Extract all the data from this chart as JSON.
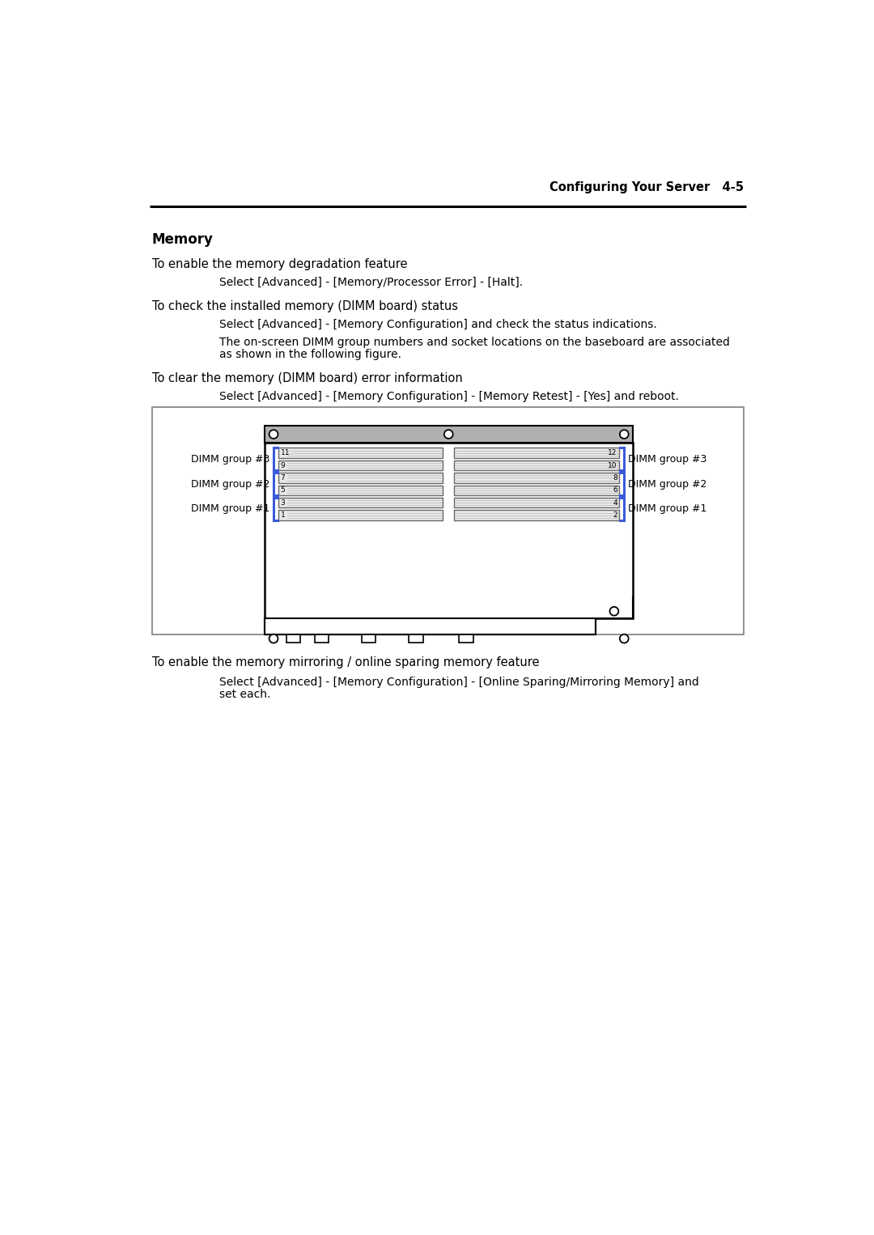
{
  "header_text": "Configuring Your Server   4-5",
  "section_title": "Memory",
  "para1_lead": "To enable the memory degradation feature",
  "para1_indent": "Select [Advanced] - [Memory/Processor Error] - [Halt].",
  "para2_lead": "To check the installed memory (DIMM board) status",
  "para2_indent1": "Select [Advanced] - [Memory Configuration] and check the status indications.",
  "para2_indent2_line1": "The on-screen DIMM group numbers and socket locations on the baseboard are associated",
  "para2_indent2_line2": "as shown in the following figure.",
  "para3_lead": "To clear the memory (DIMM board) error information",
  "para3_indent": "Select [Advanced] - [Memory Configuration] - [Memory Retest] - [Yes] and reboot.",
  "para4_lead": "To enable the memory mirroring / online sparing memory feature",
  "para4_indent_line1": "Select [Advanced] - [Memory Configuration] - [Online Sparing/Mirroring Memory] and",
  "para4_indent_line2": "set each.",
  "dimm_labels_left": [
    "DIMM group #3",
    "DIMM group #2",
    "DIMM group #1"
  ],
  "dimm_labels_right": [
    "DIMM group #3",
    "DIMM group #2",
    "DIMM group #1"
  ],
  "slot_numbers_left": [
    "11",
    "9",
    "7",
    "5",
    "3",
    "1"
  ],
  "slot_numbers_right": [
    "12",
    "10",
    "8",
    "6",
    "4",
    "2"
  ],
  "bg_color": "#ffffff",
  "text_color": "#000000",
  "blue_bracket_color": "#3b5bdb",
  "box_border_color": "#888888",
  "board_fill": "#d8d8d8",
  "slot_fill": "#e8e8e8",
  "top_strip_fill": "#b0b0b0"
}
